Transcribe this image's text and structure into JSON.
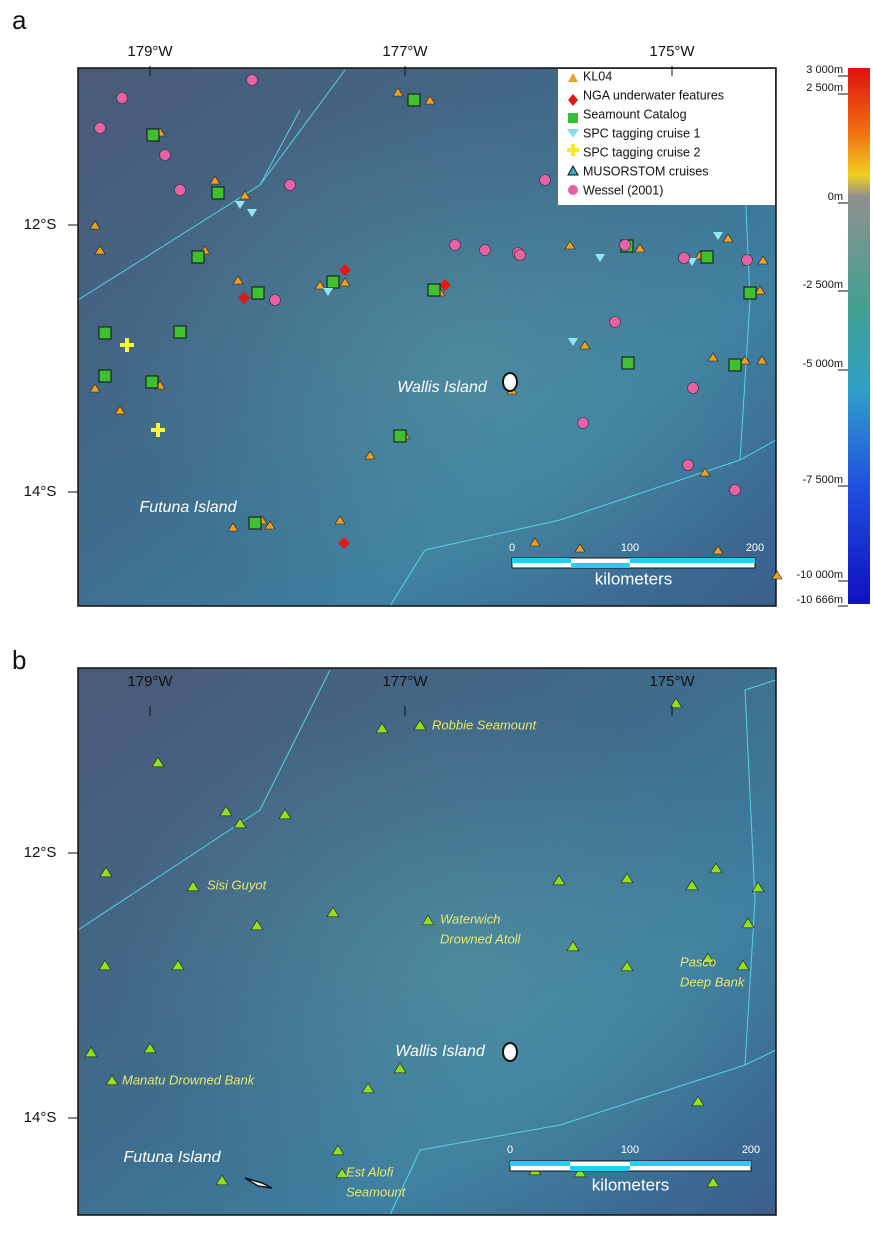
{
  "panels": [
    {
      "label": "a",
      "lon_labels": [
        "179°W",
        "177°W",
        "175°W"
      ],
      "lat_labels": [
        "12°S",
        "14°S"
      ],
      "legend": [
        "KL04",
        "NGA underwater features",
        "Seamount Catalog",
        "SPC tagging cruise 1",
        "SPC tagging cruise 2",
        "MUSORSTOM cruises",
        "Wessel (2001)"
      ],
      "colorbar": [
        "3 000m",
        "2 500m",
        "0m",
        "-2 500m",
        "-5 000m",
        "-7 500m",
        "-10 000m",
        "-10 666m"
      ],
      "places": [
        "Wallis Island",
        "Futuna Island"
      ],
      "scale": {
        "ticks": [
          "0",
          "100",
          "200"
        ],
        "unit": "kilometers"
      }
    },
    {
      "label": "b",
      "lon_labels": [
        "179°W",
        "177°W",
        "175°W"
      ],
      "lat_labels": [
        "12°S",
        "14°S"
      ],
      "places": [
        "Wallis Island",
        "Futuna Island"
      ],
      "features": [
        {
          "lines": [
            "Robbie Seamount"
          ]
        },
        {
          "lines": [
            "Sisi Guyot"
          ]
        },
        {
          "lines": [
            "Waterwich",
            "Drowned Atoll"
          ]
        },
        {
          "lines": [
            "Manatu Drowned Bank"
          ]
        },
        {
          "lines": [
            "Pasco",
            "Deep Bank"
          ]
        },
        {
          "lines": [
            "Est Alofi",
            "Seamount"
          ]
        }
      ],
      "scale": {
        "ticks": [
          "0",
          "100",
          "200"
        ],
        "unit": "kilometers"
      }
    }
  ]
}
